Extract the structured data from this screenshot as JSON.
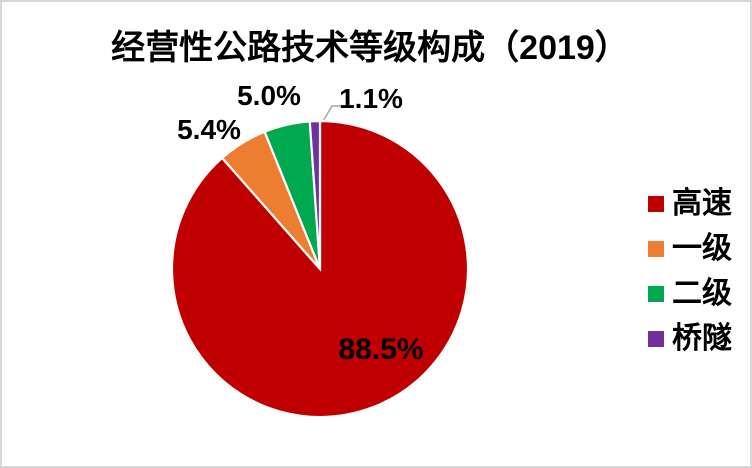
{
  "chart_data": {
    "type": "pie",
    "title": "经营性公路技术等级构成（2019）",
    "categories": [
      "高速",
      "一级",
      "二级",
      "桥隧"
    ],
    "values": [
      88.5,
      5.4,
      5.0,
      1.1
    ],
    "unit": "%",
    "data_labels": [
      "88.5%",
      "5.4%",
      "5.0%",
      "1.1%"
    ],
    "colors": [
      "#C00000",
      "#ED7D31",
      "#00A84F",
      "#7030A0"
    ],
    "start_angle_deg": 0,
    "direction": "clockwise",
    "slice_border_color": "#FFFFFF",
    "leader_line_color": "#A6A6A6",
    "legend_position": "right"
  },
  "legend": {
    "items": [
      {
        "label": "高速",
        "color": "#C00000"
      },
      {
        "label": "一级",
        "color": "#ED7D31"
      },
      {
        "label": "二级",
        "color": "#00A84F"
      },
      {
        "label": "桥隧",
        "color": "#7030A0"
      }
    ]
  }
}
